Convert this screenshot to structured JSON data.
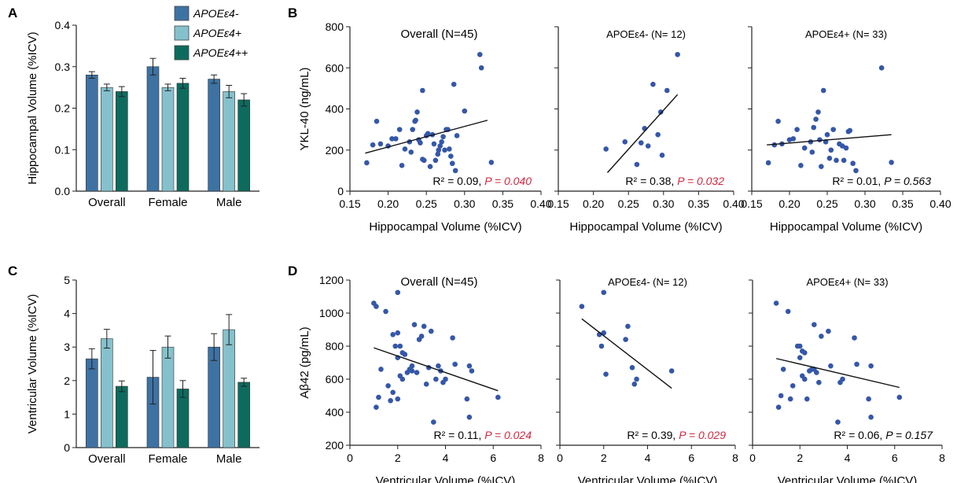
{
  "colors": {
    "neg": "#3d72a3",
    "pos": "#85c1cc",
    "pospos": "#0d6b5e",
    "points": "#3557a8",
    "sig": "#d1283f",
    "axis": "#222222"
  },
  "legend": [
    "APOEε4-",
    "APOEε4+",
    "APOEε4++"
  ],
  "panels": {
    "A": "A",
    "B": "B",
    "C": "C",
    "D": "D"
  },
  "chart_data": [
    {
      "id": "A",
      "type": "bar",
      "categories": [
        "Overall",
        "Female",
        "Male"
      ],
      "series": [
        {
          "name": "APOEε4-",
          "values": [
            0.28,
            0.3,
            0.27
          ],
          "errors": [
            0.008,
            0.02,
            0.01
          ]
        },
        {
          "name": "APOEε4+",
          "values": [
            0.25,
            0.25,
            0.24
          ],
          "errors": [
            0.008,
            0.008,
            0.015
          ]
        },
        {
          "name": "APOEε4++",
          "values": [
            0.24,
            0.26,
            0.22
          ],
          "errors": [
            0.012,
            0.012,
            0.015
          ]
        }
      ],
      "ylabel": "Hippocampal Volume (%ICV)",
      "ylim": [
        0,
        0.4
      ],
      "yticks": [
        "0.0",
        "0.1",
        "0.2",
        "0.3",
        "0.4"
      ]
    },
    {
      "id": "C",
      "type": "bar",
      "categories": [
        "Overall",
        "Female",
        "Male"
      ],
      "series": [
        {
          "name": "APOEε4-",
          "values": [
            2.65,
            2.1,
            3.0
          ],
          "errors": [
            0.3,
            0.8,
            0.4
          ]
        },
        {
          "name": "APOEε4+",
          "values": [
            3.25,
            3.0,
            3.52
          ],
          "errors": [
            0.28,
            0.33,
            0.45
          ]
        },
        {
          "name": "APOEε4++",
          "values": [
            1.83,
            1.75,
            1.95
          ],
          "errors": [
            0.16,
            0.25,
            0.12
          ]
        }
      ],
      "ylabel": "Ventricular Volume (%ICV)",
      "ylim": [
        0,
        5
      ],
      "yticks": [
        "0",
        "1",
        "2",
        "3",
        "4",
        "5"
      ]
    },
    {
      "id": "B",
      "type": "scatter",
      "ylabel": "YKL-40 (ng/mL)",
      "xlabel": "Hippocampal Volume (%ICV)",
      "xlim": [
        0.15,
        0.4
      ],
      "ylim": [
        0,
        800
      ],
      "xticks": [
        "0.15",
        "0.20",
        "0.25",
        "0.30",
        "0.35",
        "0.40"
      ],
      "yticks": [
        "0",
        "200",
        "400",
        "600",
        "800"
      ],
      "subplots": [
        {
          "title": "Overall (N=45)",
          "stat_r2": "R² = 0.09, ",
          "stat_p": "P = 0.040",
          "p_significant": true,
          "fit": [
            [
              0.17,
              185
            ],
            [
              0.33,
              345
            ]
          ],
          "points": [
            [
              0.172,
              138
            ],
            [
              0.18,
              225
            ],
            [
              0.185,
              340
            ],
            [
              0.19,
              230
            ],
            [
              0.2,
              220
            ],
            [
              0.205,
              255
            ],
            [
              0.21,
              255
            ],
            [
              0.215,
              300
            ],
            [
              0.218,
              125
            ],
            [
              0.222,
              205
            ],
            [
              0.228,
              240
            ],
            [
              0.23,
              190
            ],
            [
              0.232,
              300
            ],
            [
              0.235,
              340
            ],
            [
              0.236,
              345
            ],
            [
              0.238,
              385
            ],
            [
              0.24,
              250
            ],
            [
              0.242,
              235
            ],
            [
              0.245,
              490
            ],
            [
              0.247,
              150
            ],
            [
              0.25,
              270
            ],
            [
              0.252,
              280
            ],
            [
              0.255,
              120
            ],
            [
              0.258,
              275
            ],
            [
              0.26,
              230
            ],
            [
              0.262,
              150
            ],
            [
              0.265,
              180
            ],
            [
              0.266,
              200
            ],
            [
              0.268,
              220
            ],
            [
              0.27,
              240
            ],
            [
              0.272,
              265
            ],
            [
              0.274,
              200
            ],
            [
              0.276,
              300
            ],
            [
              0.278,
              300
            ],
            [
              0.28,
              205
            ],
            [
              0.282,
              170
            ],
            [
              0.284,
              135
            ],
            [
              0.286,
              520
            ],
            [
              0.288,
              100
            ],
            [
              0.29,
              270
            ],
            [
              0.3,
              390
            ],
            [
              0.32,
              665
            ],
            [
              0.322,
              600
            ],
            [
              0.335,
              140
            ],
            [
              0.245,
              155
            ]
          ]
        },
        {
          "title": "APOEε4- (N= 12)",
          "stat_r2": "R² = 0.38, ",
          "stat_p": "P = 0.032",
          "p_significant": true,
          "fit": [
            [
              0.22,
              90
            ],
            [
              0.32,
              470
            ]
          ],
          "points": [
            [
              0.218,
              205
            ],
            [
              0.245,
              240
            ],
            [
              0.262,
              130
            ],
            [
              0.268,
              235
            ],
            [
              0.273,
              305
            ],
            [
              0.278,
              220
            ],
            [
              0.285,
              520
            ],
            [
              0.292,
              275
            ],
            [
              0.296,
              385
            ],
            [
              0.298,
              175
            ],
            [
              0.305,
              490
            ],
            [
              0.32,
              665
            ]
          ]
        },
        {
          "title": "APOEε4+ (N= 33)",
          "stat_r2": "R² = 0.01, ",
          "stat_p": "P = 0.563",
          "p_significant": false,
          "fit": [
            [
              0.17,
              225
            ],
            [
              0.335,
              275
            ]
          ],
          "points": [
            [
              0.172,
              138
            ],
            [
              0.18,
              225
            ],
            [
              0.185,
              340
            ],
            [
              0.19,
              230
            ],
            [
              0.2,
              250
            ],
            [
              0.205,
              255
            ],
            [
              0.21,
              300
            ],
            [
              0.215,
              125
            ],
            [
              0.22,
              210
            ],
            [
              0.228,
              240
            ],
            [
              0.23,
              190
            ],
            [
              0.232,
              310
            ],
            [
              0.235,
              350
            ],
            [
              0.238,
              385
            ],
            [
              0.24,
              250
            ],
            [
              0.242,
              120
            ],
            [
              0.245,
              490
            ],
            [
              0.248,
              240
            ],
            [
              0.25,
              275
            ],
            [
              0.253,
              160
            ],
            [
              0.258,
              300
            ],
            [
              0.262,
              150
            ],
            [
              0.266,
              230
            ],
            [
              0.27,
              220
            ],
            [
              0.272,
              150
            ],
            [
              0.275,
              210
            ],
            [
              0.278,
              290
            ],
            [
              0.28,
              295
            ],
            [
              0.284,
              135
            ],
            [
              0.288,
              100
            ],
            [
              0.322,
              600
            ],
            [
              0.335,
              140
            ],
            [
              0.255,
              200
            ]
          ]
        }
      ]
    },
    {
      "id": "D",
      "type": "scatter",
      "ylabel": "Aβ42 (pg/mL)",
      "xlabel": "Ventricular Volume (%ICV)",
      "xlim": [
        0,
        8
      ],
      "ylim": [
        200,
        1200
      ],
      "xticks": [
        "0",
        "2",
        "4",
        "6",
        "8"
      ],
      "yticks": [
        "200",
        "400",
        "600",
        "800",
        "1000",
        "1200"
      ],
      "subplots": [
        {
          "title": "Overall (N=45)",
          "stat_r2": "R² = 0.11, ",
          "stat_p": "P = 0.024",
          "p_significant": true,
          "fit": [
            [
              1.0,
              790
            ],
            [
              6.2,
              530
            ]
          ],
          "points": [
            [
              1.0,
              1060
            ],
            [
              1.1,
              1040
            ],
            [
              1.2,
              490
            ],
            [
              1.1,
              430
            ],
            [
              1.3,
              660
            ],
            [
              1.5,
              1010
            ],
            [
              1.6,
              560
            ],
            [
              1.7,
              470
            ],
            [
              1.8,
              870
            ],
            [
              1.9,
              800
            ],
            [
              2.0,
              1125
            ],
            [
              2.0,
              880
            ],
            [
              2.1,
              800
            ],
            [
              2.0,
              730
            ],
            [
              2.2,
              760
            ],
            [
              2.3,
              750
            ],
            [
              2.1,
              620
            ],
            [
              2.2,
              600
            ],
            [
              2.0,
              480
            ],
            [
              2.4,
              640
            ],
            [
              2.5,
              660
            ],
            [
              2.6,
              680
            ],
            [
              2.7,
              930
            ],
            [
              2.8,
              640
            ],
            [
              2.9,
              840
            ],
            [
              3.0,
              860
            ],
            [
              3.1,
              920
            ],
            [
              3.2,
              570
            ],
            [
              3.3,
              670
            ],
            [
              3.4,
              890
            ],
            [
              3.5,
              340
            ],
            [
              3.6,
              600
            ],
            [
              3.7,
              680
            ],
            [
              3.8,
              650
            ],
            [
              3.9,
              580
            ],
            [
              4.0,
              600
            ],
            [
              4.3,
              850
            ],
            [
              4.4,
              690
            ],
            [
              4.9,
              480
            ],
            [
              5.0,
              680
            ],
            [
              5.0,
              370
            ],
            [
              5.1,
              650
            ],
            [
              6.2,
              490
            ],
            [
              2.6,
              650
            ],
            [
              1.8,
              520
            ]
          ]
        },
        {
          "title": "APOEε4- (N= 12)",
          "stat_r2": "R² = 0.39, ",
          "stat_p": "P = 0.029",
          "p_significant": true,
          "fit": [
            [
              1.0,
              965
            ],
            [
              5.1,
              545
            ]
          ],
          "points": [
            [
              1.0,
              1040
            ],
            [
              1.8,
              870
            ],
            [
              1.9,
              800
            ],
            [
              2.0,
              1125
            ],
            [
              2.0,
              880
            ],
            [
              2.1,
              630
            ],
            [
              3.0,
              840
            ],
            [
              3.1,
              920
            ],
            [
              3.3,
              670
            ],
            [
              3.4,
              570
            ],
            [
              3.5,
              600
            ],
            [
              5.1,
              650
            ]
          ]
        },
        {
          "title": "APOEε4+ (N= 33)",
          "stat_r2": "R² = 0.06, ",
          "stat_p": "P = 0.157",
          "p_significant": false,
          "fit": [
            [
              1.0,
              725
            ],
            [
              6.2,
              550
            ]
          ],
          "points": [
            [
              1.0,
              1060
            ],
            [
              1.1,
              430
            ],
            [
              1.2,
              500
            ],
            [
              1.3,
              660
            ],
            [
              1.5,
              1010
            ],
            [
              1.6,
              480
            ],
            [
              1.7,
              560
            ],
            [
              1.9,
              800
            ],
            [
              2.0,
              800
            ],
            [
              2.1,
              770
            ],
            [
              2.2,
              760
            ],
            [
              2.0,
              730
            ],
            [
              2.1,
              620
            ],
            [
              2.2,
              600
            ],
            [
              2.3,
              480
            ],
            [
              2.4,
              650
            ],
            [
              2.5,
              660
            ],
            [
              2.6,
              930
            ],
            [
              2.7,
              640
            ],
            [
              2.8,
              580
            ],
            [
              2.9,
              860
            ],
            [
              3.2,
              890
            ],
            [
              3.3,
              680
            ],
            [
              3.6,
              340
            ],
            [
              3.7,
              580
            ],
            [
              3.8,
              600
            ],
            [
              4.3,
              850
            ],
            [
              4.4,
              690
            ],
            [
              4.9,
              480
            ],
            [
              5.0,
              680
            ],
            [
              5.0,
              370
            ],
            [
              6.2,
              490
            ],
            [
              2.6,
              660
            ]
          ]
        }
      ]
    }
  ]
}
